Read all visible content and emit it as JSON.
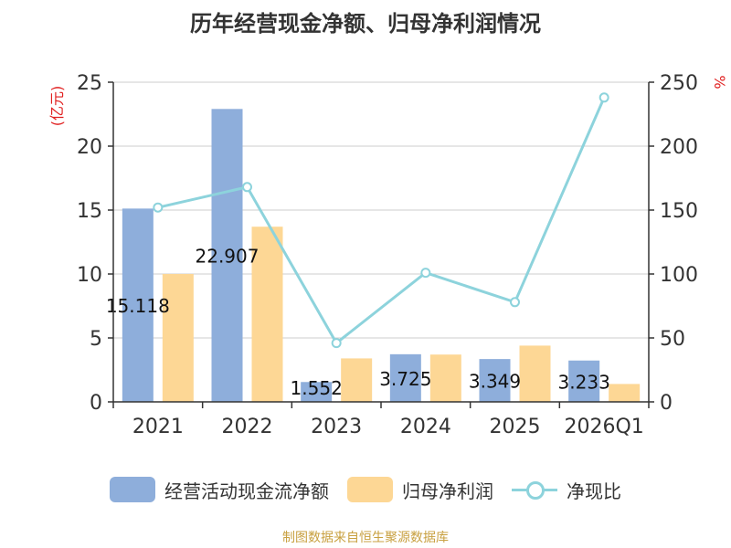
{
  "title": "历年经营现金净额、归母净利润情况",
  "source": "制图数据来自恒生聚源数据库",
  "legend": {
    "bar1": "经营活动现金流净额",
    "bar2": "归母净利润",
    "line": "净现比"
  },
  "colors": {
    "bar1": "#8eaedb",
    "bar2": "#fdd795",
    "line": "#8dd3dc",
    "axis_unit": "#e02020"
  },
  "chart_data": {
    "type": "bar",
    "categories": [
      "2021",
      "2022",
      "2023",
      "2024",
      "2025",
      "2026Q1"
    ],
    "series": [
      {
        "name": "经营活动现金流净额",
        "values": [
          15.118,
          22.907,
          1.552,
          3.725,
          3.349,
          3.233
        ],
        "labels": [
          "15.118",
          "22.907",
          "1.552",
          "3.725",
          "3.349",
          "3.233"
        ]
      },
      {
        "name": "归母净利润",
        "values": [
          10.0,
          13.7,
          3.4,
          3.7,
          4.4,
          1.4
        ]
      },
      {
        "name": "净现比",
        "type": "line",
        "axis": "right",
        "values": [
          152,
          168,
          46,
          101,
          78,
          238
        ]
      }
    ],
    "ylabel_left": "(亿元)",
    "ylabel_right": "%",
    "ylim_left": [
      0,
      25
    ],
    "ylim_right": [
      0,
      250
    ],
    "yticks_left": [
      "0",
      "5",
      "10",
      "15",
      "20",
      "25"
    ],
    "yticks_right": [
      "0",
      "50",
      "100",
      "150",
      "200",
      "250"
    ],
    "grid": true,
    "legend_position": "bottom"
  }
}
